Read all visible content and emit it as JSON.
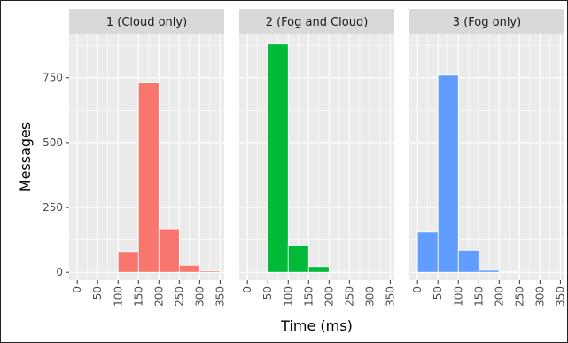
{
  "chart_data": {
    "type": "bar",
    "xlabel": "Time (ms)",
    "ylabel": "Messages",
    "xlim": [
      -20,
      360
    ],
    "ylim": [
      -30,
      920
    ],
    "x_ticks": [
      0,
      50,
      100,
      150,
      200,
      250,
      300,
      350
    ],
    "y_ticks": [
      0,
      250,
      500,
      750
    ],
    "bin_width": 50,
    "grid": true,
    "panels": [
      {
        "title": "1 (Cloud only)",
        "color": "#F8766D",
        "bins": [
          {
            "x": 150,
            "value": 80
          },
          {
            "x": 200,
            "value": 730
          },
          {
            "x": 250,
            "value": 168
          },
          {
            "x": 300,
            "value": 27
          },
          {
            "x": 350,
            "value": 5
          }
        ]
      },
      {
        "title": "2 (Fog and Cloud)",
        "color": "#00BA38",
        "bins": [
          {
            "x": 100,
            "value": 880
          },
          {
            "x": 150,
            "value": 105
          },
          {
            "x": 200,
            "value": 22
          },
          {
            "x": 250,
            "value": 3
          }
        ]
      },
      {
        "title": "3 (Fog only)",
        "color": "#619CFF",
        "bins": [
          {
            "x": 50,
            "value": 155
          },
          {
            "x": 100,
            "value": 760
          },
          {
            "x": 150,
            "value": 85
          },
          {
            "x": 200,
            "value": 8
          },
          {
            "x": 250,
            "value": 2
          }
        ]
      }
    ]
  }
}
